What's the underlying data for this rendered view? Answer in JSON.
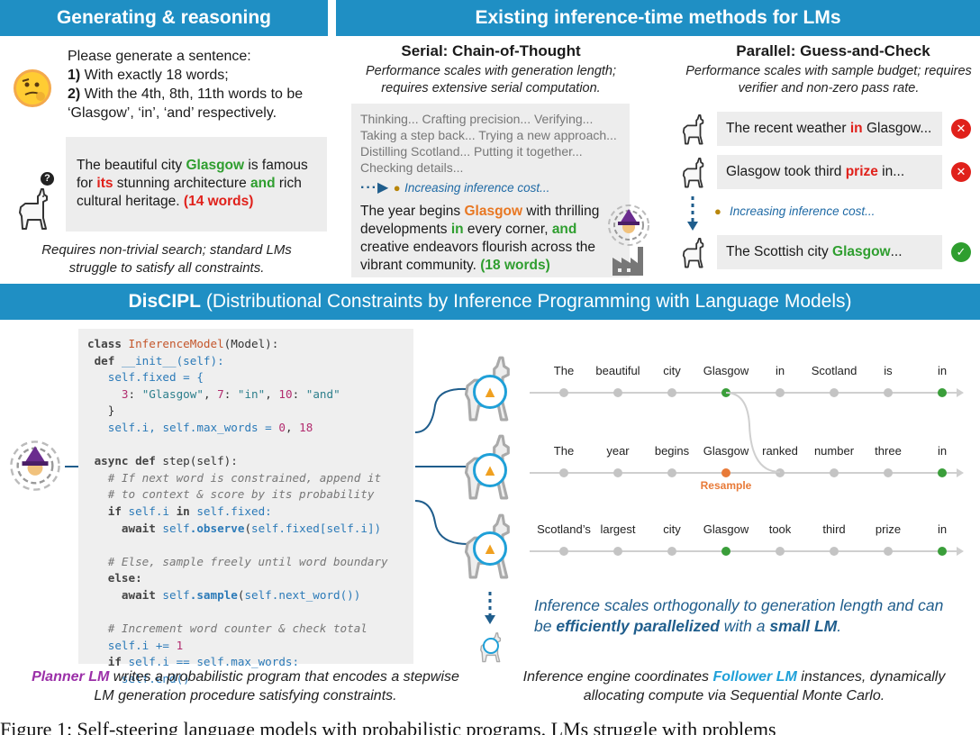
{
  "banners": {
    "left": "Generating & reasoning",
    "right": "Existing inference-time methods for LMs",
    "discipl_name": "DisCIPL",
    "discipl_full": " (Distributional Constraints by Inference Programming with Language Models)"
  },
  "generating": {
    "prompt_line1": "Please generate a sentence:",
    "prompt_n1": "1)",
    "prompt_line2": " With exactly 18 words;",
    "prompt_n2": "2)",
    "prompt_line3": " With the 4th, 8th, 11th words to be ‘Glasgow’, ‘in’, ‘and’ respectively.",
    "answer_pre": "The beautiful city ",
    "answer_w1": "Glasgow",
    "answer_mid1": " is famous for ",
    "answer_w2": "its",
    "answer_mid2": " stunning architecture ",
    "answer_w3": "and",
    "answer_mid3": " rich cultural heritage. ",
    "answer_count": "(14 words)",
    "caption": "Requires non-trivial search; standard LMs struggle to satisfy all constraints."
  },
  "serial": {
    "title": "Serial: Chain-of-Thought",
    "subtitle": "Performance scales with generation length; requires extensive serial computation.",
    "thinking": "Thinking... Crafting precision... Verifying... Taking a step back... Trying a new approach... Distilling Scotland... Putting it together... Checking details...",
    "cost": "Increasing inference cost...",
    "answer_pre": "The year begins ",
    "answer_w1": "Glasgow",
    "answer_mid1": " with thrilling developments ",
    "answer_w2": "in",
    "answer_mid2": " every corner, ",
    "answer_w3": "and",
    "answer_mid3": " creative endeavors flourish across the vibrant community. ",
    "answer_count": "(18 words)"
  },
  "parallel": {
    "title": "Parallel: Guess-and-Check",
    "subtitle": "Performance scales with sample budget; requires verifier and non-zero pass rate.",
    "guess1_pre": "The recent weather ",
    "guess1_w": "in",
    "guess1_post": " Glasgow...",
    "guess2_pre": "Glasgow took third ",
    "guess2_w": "prize",
    "guess2_post": " in...",
    "cost": "Increasing inference cost...",
    "guess3_pre": "The Scottish city ",
    "guess3_w": "Glasgow",
    "guess3_post": "...",
    "fail_glyph": "✕",
    "pass_glyph": "✓"
  },
  "program": {
    "line1_kw": "class ",
    "line1_name": "InferenceModel",
    "line1_rest": "(Model):",
    "line2_kw": "def ",
    "line2_rest": "__init__(self):",
    "line3_self": "self",
    "line3_rest": ".fixed = {",
    "line4_k1": "3",
    "line4_v1": "\"Glasgow\"",
    "line4_k2": "7",
    "line4_v2": "\"in\"",
    "line4_k3": "10",
    "line4_v3": "\"and\"",
    "line5": "}",
    "line6_a": ".i, ",
    "line6_b": ".max_words = ",
    "line6_n1": "0",
    "line6_n2": "18",
    "line7_kw": "async def ",
    "line7_rest": "step(self):",
    "cmt1": "# If next word is constrained, append it",
    "cmt2": "# to context & score by its probability",
    "line10_kw": "if ",
    "line10_a": ".i ",
    "line10_in": "in ",
    "line10_b": ".fixed:",
    "line11_kw": "await ",
    "line11_fn": ".observe",
    "line11_a": "(",
    "line11_b": ".fixed[",
    "line11_c": ".i])",
    "cmt3": "# Else, sample freely until word boundary",
    "line13_kw": "else:",
    "line14_fn": ".sample",
    "line14_b": ".next_word())",
    "cmt4": "# Increment word counter & check total",
    "line16_a": ".i += ",
    "line16_n": "1",
    "line17_b": ".i == ",
    "line17_c": ".max_words:",
    "line18_b": ".end()",
    "caption_em": "Planner LM",
    "caption_rest": " writes a probabilistic program that encodes a stepwise LM generation procedure satisfying constraints."
  },
  "particles": {
    "row1": [
      "The",
      "beautiful",
      "city",
      "Glasgow",
      "in",
      "Scotland",
      "is",
      "in"
    ],
    "row2": [
      "The",
      "year",
      "begins",
      "Glasgow",
      "ranked",
      "number",
      "three",
      "in"
    ],
    "row3": [
      "Scotland’s",
      "largest",
      "city",
      "Glasgow",
      "took",
      "third",
      "prize",
      "in"
    ],
    "resample_label": "Resample",
    "scaling_pre": "Inference scales orthogonally to generation length and can be ",
    "scaling_em1": "efficiently parallelized",
    "scaling_mid": " with a ",
    "scaling_em2": "small LM",
    "scaling_post": ".",
    "caption_pre": "Inference engine coordinates ",
    "caption_em": "Follower LM",
    "caption_rest": " instances, dynamically allocating compute via Sequential Monte Carlo."
  },
  "footnote": "Figure 1: Self-steering language models with probabilistic programs. LMs struggle with problems",
  "colors": {
    "banner": "#1f8fc4",
    "constraint_ok": "#2f9e2f",
    "constraint_fail": "#e0211b",
    "resample": "#e87a38",
    "planner": "#9b2fa8",
    "follower": "#1fa0d8",
    "italic_blue": "#1f5d8c"
  },
  "icons": [
    "thinking-face-icon",
    "llama-icon",
    "question-mark-icon",
    "witch-portal-icon",
    "factory-icon",
    "money-bag-icon",
    "cross-icon",
    "check-icon",
    "praying-hands-icon"
  ]
}
